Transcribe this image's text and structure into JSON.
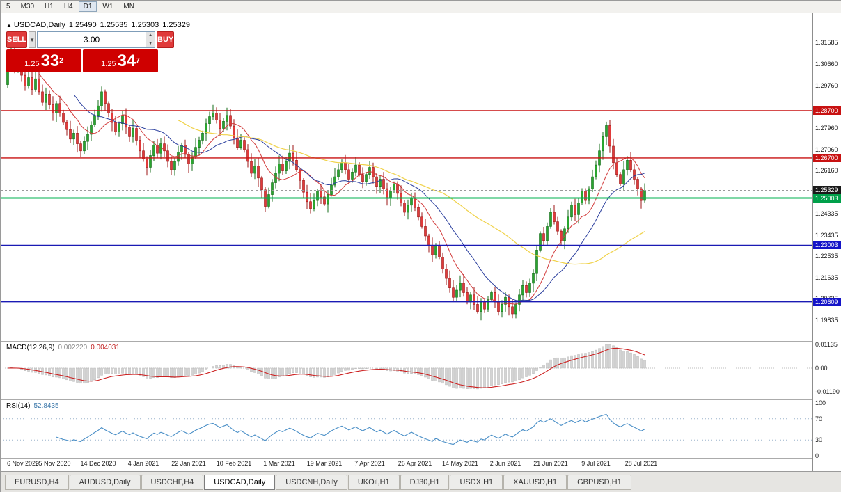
{
  "toolbar": {
    "timeframes": [
      "5",
      "M30",
      "H1",
      "H4",
      "D1",
      "W1",
      "MN"
    ],
    "active": "D1"
  },
  "chart_header": {
    "marker": "▲",
    "title": "USDCAD,Daily",
    "open": "1.25490",
    "high": "1.25535",
    "low": "1.25303",
    "close": "1.25329"
  },
  "trade_panel": {
    "sell_label": "SELL",
    "buy_label": "BUY",
    "volume": "3.00",
    "sell_price_small": "1.25",
    "sell_price_big": "33",
    "sell_price_sup": "2",
    "buy_price_small": "1.25",
    "buy_price_big": "34",
    "buy_price_sup": "7"
  },
  "macd_panel": {
    "label": "MACD(12,26,9)",
    "value_main": "0.002220",
    "value_signal": "0.004031",
    "axis": [
      "0.01135",
      "0.00",
      "-0.01190"
    ]
  },
  "rsi_panel": {
    "label": "RSI(14)",
    "value": "52.8435",
    "axis": [
      "100",
      "70",
      "30",
      "0"
    ],
    "levels": [
      70,
      30
    ]
  },
  "price_axis": {
    "ticks": [
      "1.31585",
      "1.30660",
      "1.29760",
      "1.27960",
      "1.27060",
      "1.26160",
      "1.24335",
      "1.23435",
      "1.22535",
      "1.21635",
      "1.20735",
      "1.19835"
    ],
    "badges": [
      {
        "text": "1.28700",
        "price": 1.287,
        "bg": "#c81111"
      },
      {
        "text": "1.26700",
        "price": 1.267,
        "bg": "#c81111"
      },
      {
        "text": "1.25329",
        "price": 1.25329,
        "bg": "#1a1a1a"
      },
      {
        "text": "1.25003",
        "price": 1.25003,
        "bg": "#00a04a"
      },
      {
        "text": "1.23003",
        "price": 1.23003,
        "bg": "#1414c8"
      },
      {
        "text": "1.20609",
        "price": 1.20609,
        "bg": "#1414c8"
      }
    ]
  },
  "tabs": [
    {
      "label": "EURUSD,H4",
      "active": false
    },
    {
      "label": "AUDUSD,Daily",
      "active": false
    },
    {
      "label": "USDCHF,H4",
      "active": false
    },
    {
      "label": "USDCAD,Daily",
      "active": true
    },
    {
      "label": "USDCNH,Daily",
      "active": false
    },
    {
      "label": "UKOil,H1",
      "active": false
    },
    {
      "label": "DJ30,H1",
      "active": false
    },
    {
      "label": "USDX,H1",
      "active": false
    },
    {
      "label": "XAUUSD,H1",
      "active": false
    },
    {
      "label": "GBPUSD,H1",
      "active": false
    }
  ],
  "chart_data": {
    "type": "candlestick",
    "symbol": "USDCAD",
    "timeframe": "Daily",
    "title": "USDCAD,Daily",
    "ohlc_last": {
      "open": 1.2549,
      "high": 1.25535,
      "low": 1.25303,
      "close": 1.25329
    },
    "price_range": [
      1.1901,
      1.3253
    ],
    "first_open": 1.298,
    "closes": [
      1.309,
      1.313,
      1.3045,
      1.308,
      1.302,
      1.2975,
      1.301,
      1.296,
      1.3005,
      1.295,
      1.2905,
      1.294,
      1.2895,
      1.286,
      1.29,
      1.286,
      1.282,
      1.279,
      1.275,
      1.2775,
      1.273,
      1.27,
      1.274,
      1.277,
      1.281,
      1.285,
      1.289,
      1.295,
      1.29,
      1.286,
      1.282,
      1.278,
      1.2815,
      1.285,
      1.28,
      1.276,
      1.2795,
      1.2745,
      1.27,
      1.2665,
      1.263,
      1.268,
      1.2725,
      1.269,
      1.273,
      1.27,
      1.2655,
      1.262,
      1.2655,
      1.2695,
      1.2725,
      1.2685,
      1.2645,
      1.2675,
      1.2715,
      1.2745,
      1.2775,
      1.2815,
      1.2845,
      1.286,
      1.283,
      1.2795,
      1.2825,
      1.285,
      1.2805,
      1.2755,
      1.2715,
      1.2745,
      1.2705,
      1.2655,
      1.2605,
      1.2635,
      1.2585,
      1.2535,
      1.2465,
      1.2515,
      1.2565,
      1.2605,
      1.2645,
      1.2615,
      1.2655,
      1.269,
      1.266,
      1.262,
      1.2575,
      1.2525,
      1.2485,
      1.2455,
      1.249,
      1.253,
      1.2505,
      1.2475,
      1.2515,
      1.2555,
      1.259,
      1.262,
      1.265,
      1.262,
      1.258,
      1.261,
      1.264,
      1.26,
      1.257,
      1.26,
      1.263,
      1.259,
      1.255,
      1.258,
      1.254,
      1.25,
      1.253,
      1.256,
      1.252,
      1.248,
      1.244,
      1.247,
      1.25,
      1.246,
      1.242,
      1.238,
      1.234,
      1.23,
      1.226,
      1.23,
      1.225,
      1.22,
      1.216,
      1.212,
      1.208,
      1.211,
      1.214,
      1.21,
      1.206,
      1.209,
      1.205,
      1.202,
      1.206,
      1.203,
      1.207,
      1.21,
      1.206,
      1.202,
      1.205,
      1.208,
      1.204,
      1.201,
      1.205,
      1.209,
      1.213,
      1.21,
      1.214,
      1.218,
      1.228,
      1.235,
      1.232,
      1.238,
      1.244,
      1.24,
      1.236,
      1.232,
      1.237,
      1.242,
      1.247,
      1.243,
      1.248,
      1.253,
      1.249,
      1.254,
      1.259,
      1.264,
      1.27,
      1.276,
      1.2807,
      1.272,
      1.265,
      1.26,
      1.256,
      1.262,
      1.266,
      1.262,
      1.258,
      1.254,
      1.249,
      1.2533
    ],
    "moving_averages": [
      {
        "period": 10,
        "color": "#d23a3a",
        "width": 1
      },
      {
        "period": 20,
        "color": "#2b3f9e",
        "width": 1
      },
      {
        "period": 50,
        "color": "#f0d24a",
        "width": 1.2
      }
    ],
    "horizontal_lines": [
      {
        "price": 1.287,
        "color": "#c81111",
        "w": 1.4
      },
      {
        "price": 1.267,
        "color": "#c81111",
        "w": 1.4
      },
      {
        "price": 1.25003,
        "color": "#00b24f",
        "w": 2
      },
      {
        "price": 1.23003,
        "color": "#1a1ab4",
        "w": 1.4
      },
      {
        "price": 1.20609,
        "color": "#1a1ab4",
        "w": 1.4
      },
      {
        "price": 1.25329,
        "color": "#9a9a9a",
        "w": 1,
        "dash": "3,3"
      }
    ],
    "macd": {
      "fast": 12,
      "slow": 26,
      "signal": 9,
      "main_value": 0.00222,
      "signal_value": 0.004031,
      "scale_top": 0.01135,
      "scale_bottom": -0.0119
    },
    "rsi": {
      "period": 14,
      "value": 52.8435,
      "levels": [
        70,
        30
      ],
      "scale": [
        0,
        100
      ]
    },
    "dates": [
      {
        "label": "6 Nov 2020",
        "idx": 0
      },
      {
        "label": "25 Nov 2020",
        "idx": 13
      },
      {
        "label": "14 Dec 2020",
        "idx": 26
      },
      {
        "label": "4 Jan 2021",
        "idx": 39
      },
      {
        "label": "22 Jan 2021",
        "idx": 52
      },
      {
        "label": "10 Feb 2021",
        "idx": 65
      },
      {
        "label": "1 Mar 2021",
        "idx": 78
      },
      {
        "label": "19 Mar 2021",
        "idx": 91
      },
      {
        "label": "7 Apr 2021",
        "idx": 104
      },
      {
        "label": "26 Apr 2021",
        "idx": 117
      },
      {
        "label": "14 May 2021",
        "idx": 130
      },
      {
        "label": "2 Jun 2021",
        "idx": 143
      },
      {
        "label": "21 Jun 2021",
        "idx": 156
      },
      {
        "label": "9 Jul 2021",
        "idx": 169
      },
      {
        "label": "28 Jul 2021",
        "idx": 182
      }
    ]
  }
}
